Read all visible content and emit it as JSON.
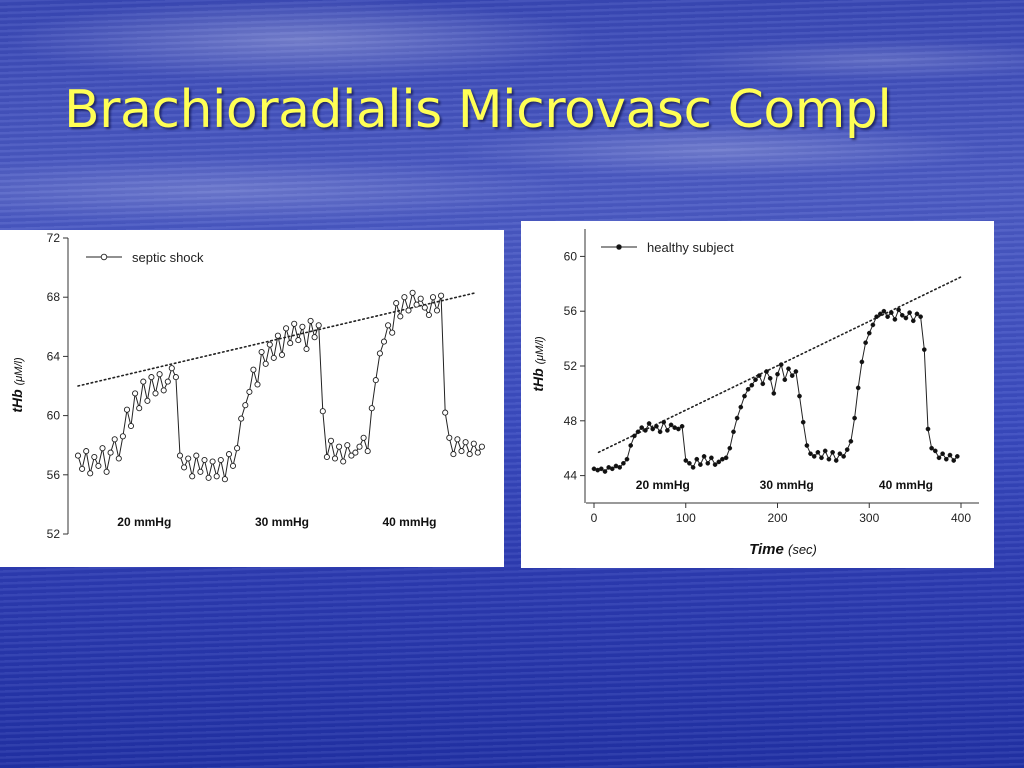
{
  "slide": {
    "title": "Brachioradialis Microvasc Compl"
  },
  "chart_data": [
    {
      "type": "line",
      "legend": "septic shock",
      "legend_position": "top-left",
      "ylabel_main": "tHb",
      "ylabel_unit": "(μM/l)",
      "ylim": [
        52,
        72
      ],
      "yticks": [
        52,
        56,
        60,
        64,
        68,
        72
      ],
      "xlim": [
        0,
        400
      ],
      "pressure_labels": [
        "20 mmHg",
        "30 mmHg",
        "40 mmHg"
      ],
      "pressure_positions": [
        65,
        200,
        325
      ],
      "trend": {
        "x": [
          0,
          390
        ],
        "y": [
          62.0,
          68.3
        ]
      },
      "series": [
        {
          "marker": "open-circle",
          "x": [
            0,
            4,
            8,
            12,
            16,
            20,
            24,
            28,
            32,
            36,
            40,
            44,
            48,
            52,
            56,
            60,
            64,
            68,
            72,
            76,
            80,
            84,
            88,
            92,
            96,
            100,
            104,
            108,
            112,
            116,
            120,
            124,
            128,
            132,
            136,
            140,
            144,
            148,
            152,
            156,
            160,
            164,
            168,
            172,
            176,
            180,
            184,
            188,
            192,
            196,
            200,
            204,
            208,
            212,
            216,
            220,
            224,
            228,
            232,
            236,
            240,
            244,
            248,
            252,
            256,
            260,
            264,
            268,
            272,
            276,
            280,
            284,
            288,
            292,
            296,
            300,
            304,
            308,
            312,
            316,
            320,
            324,
            328,
            332,
            336,
            340,
            344,
            348,
            352,
            356,
            360,
            364,
            368,
            372,
            376,
            380,
            384,
            388,
            392,
            396
          ],
          "y": [
            57.3,
            56.4,
            57.6,
            56.1,
            57.2,
            56.6,
            57.8,
            56.2,
            57.5,
            58.4,
            57.1,
            58.6,
            60.4,
            59.3,
            61.5,
            60.5,
            62.3,
            61.0,
            62.6,
            61.5,
            62.8,
            61.7,
            62.3,
            63.2,
            62.6,
            57.3,
            56.5,
            57.1,
            55.9,
            57.3,
            56.2,
            57.0,
            55.8,
            56.9,
            55.9,
            57.0,
            55.7,
            57.4,
            56.6,
            57.8,
            59.8,
            60.7,
            61.6,
            63.1,
            62.1,
            64.3,
            63.5,
            64.8,
            63.9,
            65.4,
            64.1,
            65.9,
            64.9,
            66.2,
            65.1,
            66.0,
            64.5,
            66.4,
            65.3,
            66.1,
            60.3,
            57.2,
            58.3,
            57.1,
            57.9,
            56.9,
            58.0,
            57.3,
            57.5,
            57.9,
            58.5,
            57.6,
            60.5,
            62.4,
            64.2,
            65.0,
            66.1,
            65.6,
            67.6,
            66.7,
            68.0,
            67.1,
            68.3,
            67.5,
            67.9,
            67.3,
            66.8,
            68.0,
            67.1,
            68.1,
            60.2,
            58.5,
            57.4,
            58.4,
            57.6,
            58.2,
            57.4,
            58.1,
            57.5,
            57.9
          ]
        }
      ]
    },
    {
      "type": "line",
      "legend": "healthy subject",
      "legend_position": "top-left",
      "ylabel_main": "tHb",
      "ylabel_unit": "(μM/l)",
      "xlabel_main": "Time",
      "xlabel_unit": "(sec)",
      "xlim": [
        0,
        400
      ],
      "xticks": [
        0,
        100,
        200,
        300,
        400
      ],
      "ylim": [
        42,
        62
      ],
      "yticks": [
        44,
        48,
        52,
        56,
        60
      ],
      "pressure_labels": [
        "20 mmHg",
        "30 mmHg",
        "40 mmHg"
      ],
      "pressure_positions": [
        75,
        210,
        340
      ],
      "trend": {
        "x": [
          5,
          400
        ],
        "y": [
          45.7,
          58.5
        ]
      },
      "series": [
        {
          "marker": "filled-dot",
          "x": [
            0,
            4,
            8,
            12,
            16,
            20,
            24,
            28,
            32,
            36,
            40,
            44,
            48,
            52,
            56,
            60,
            64,
            68,
            72,
            76,
            80,
            84,
            88,
            92,
            96,
            100,
            104,
            108,
            112,
            116,
            120,
            124,
            128,
            132,
            136,
            140,
            144,
            148,
            152,
            156,
            160,
            164,
            168,
            172,
            176,
            180,
            184,
            188,
            192,
            196,
            200,
            204,
            208,
            212,
            216,
            220,
            224,
            228,
            232,
            236,
            240,
            244,
            248,
            252,
            256,
            260,
            264,
            268,
            272,
            276,
            280,
            284,
            288,
            292,
            296,
            300,
            304,
            308,
            312,
            316,
            320,
            324,
            328,
            332,
            336,
            340,
            344,
            348,
            352,
            356,
            360,
            364,
            368,
            372,
            376,
            380,
            384,
            388,
            392,
            396
          ],
          "y": [
            44.5,
            44.4,
            44.5,
            44.3,
            44.6,
            44.5,
            44.7,
            44.6,
            44.9,
            45.2,
            46.2,
            46.9,
            47.2,
            47.5,
            47.3,
            47.8,
            47.4,
            47.6,
            47.2,
            47.9,
            47.3,
            47.7,
            47.5,
            47.4,
            47.6,
            45.1,
            44.9,
            44.6,
            45.2,
            44.8,
            45.4,
            44.9,
            45.3,
            44.8,
            45.0,
            45.2,
            45.3,
            46.0,
            47.2,
            48.2,
            49.0,
            49.8,
            50.3,
            50.6,
            51.0,
            51.3,
            50.7,
            51.6,
            51.1,
            50.0,
            51.4,
            52.1,
            51.0,
            51.8,
            51.3,
            51.6,
            49.8,
            47.9,
            46.2,
            45.6,
            45.4,
            45.7,
            45.3,
            45.8,
            45.2,
            45.7,
            45.1,
            45.6,
            45.4,
            45.9,
            46.5,
            48.2,
            50.4,
            52.3,
            53.7,
            54.4,
            55.0,
            55.6,
            55.8,
            56.0,
            55.6,
            55.9,
            55.4,
            56.1,
            55.7,
            55.5,
            55.9,
            55.3,
            55.8,
            55.6,
            53.2,
            47.4,
            46.0,
            45.8,
            45.3,
            45.6,
            45.2,
            45.5,
            45.1,
            45.4
          ]
        }
      ]
    }
  ]
}
